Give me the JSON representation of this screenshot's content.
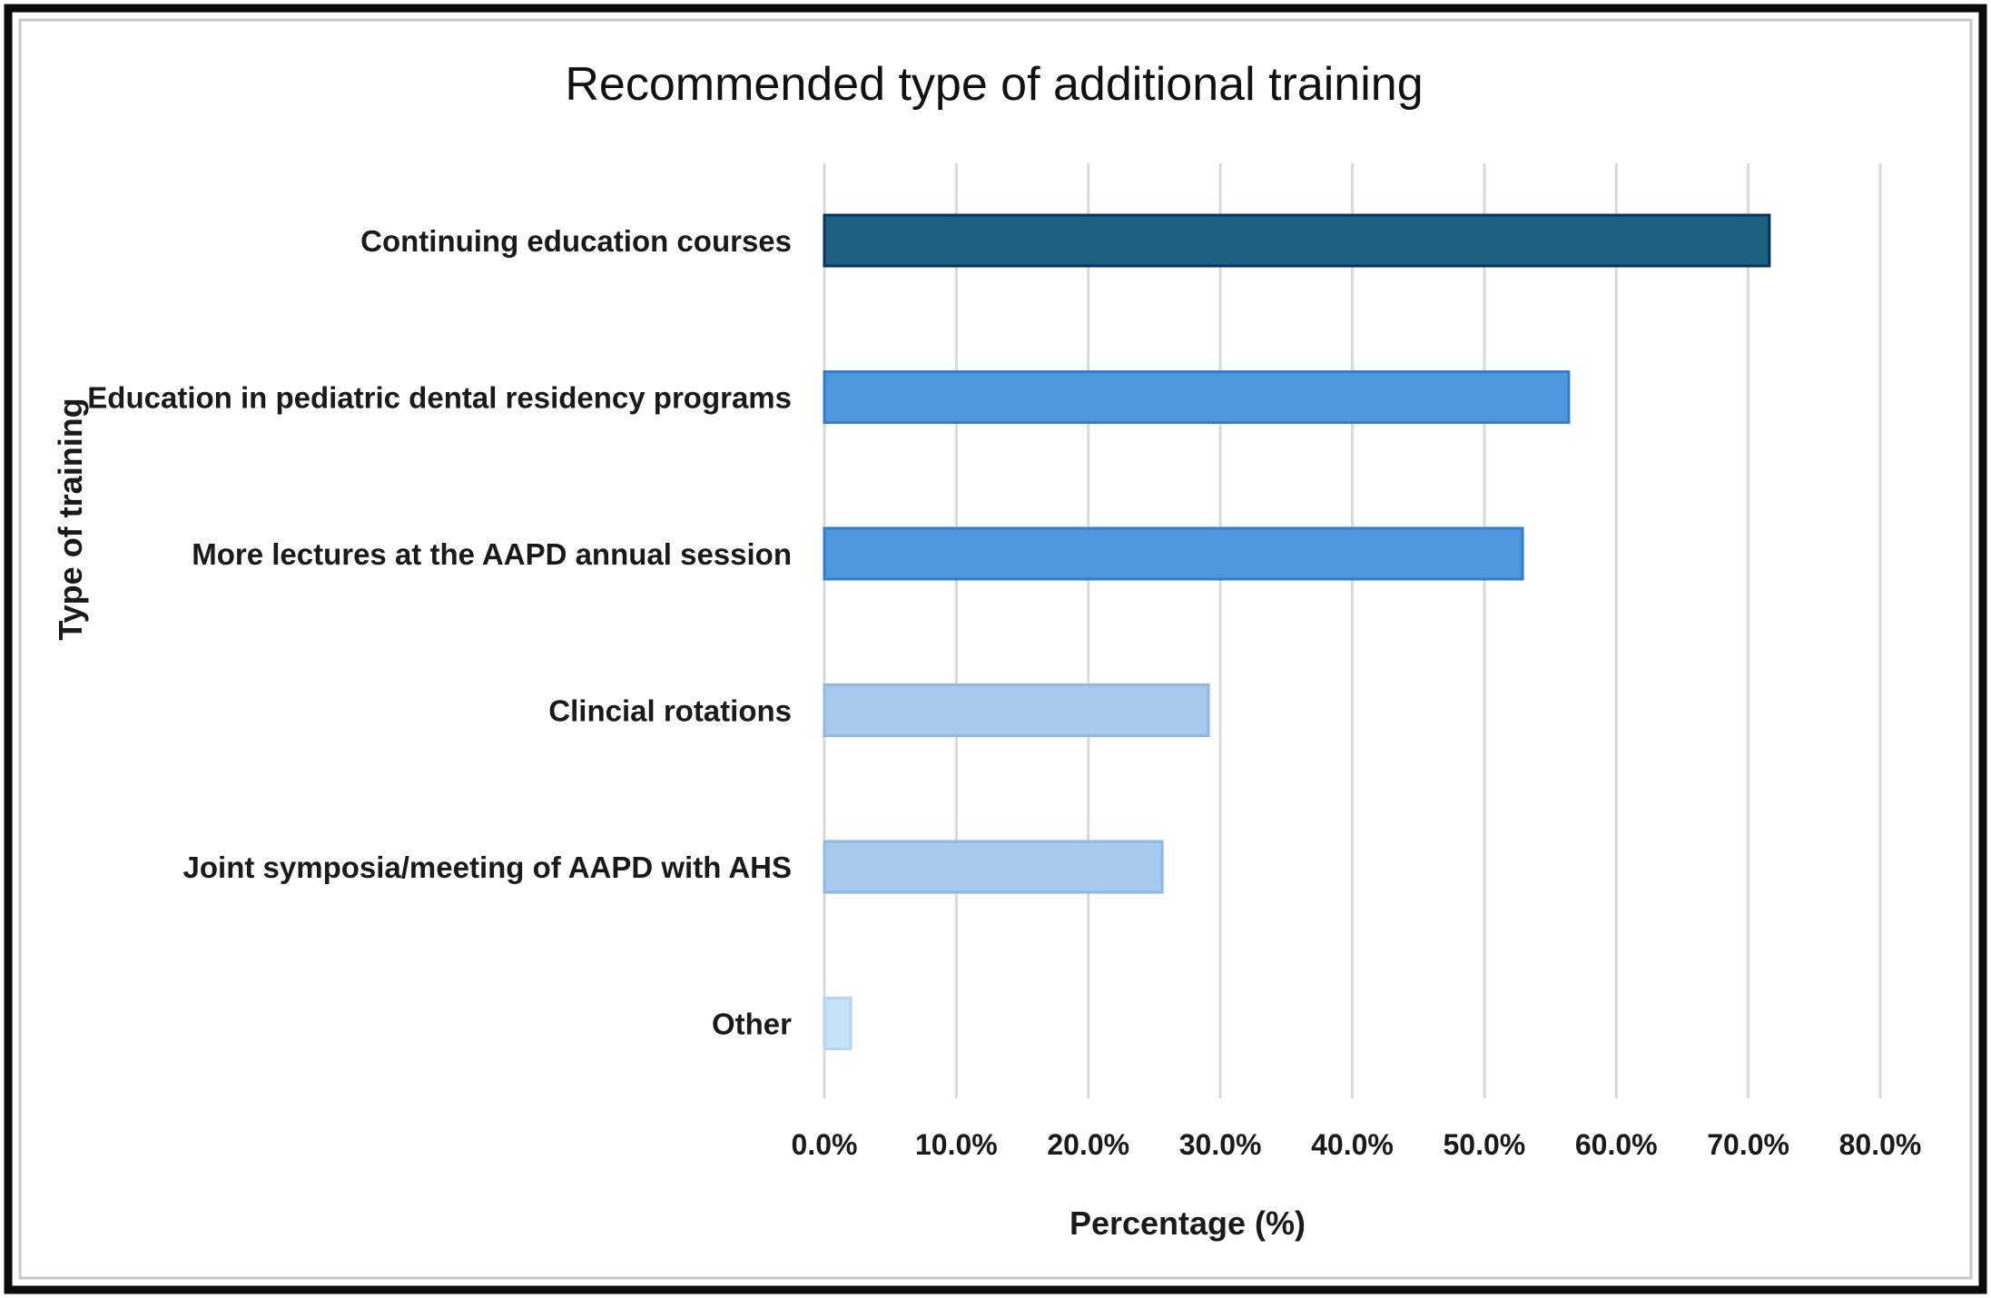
{
  "chart_data": {
    "type": "bar",
    "orientation": "horizontal",
    "title": "Recommended type of additional training",
    "xlabel": "Percentage (%)",
    "ylabel": "Type of training",
    "categories": [
      "Continuing education courses",
      "Education in pediatric dental residency programs",
      "More lectures at the AAPD annual session",
      "Clincial rotations",
      "Joint symposia/meeting of AAPD with AHS",
      "Other"
    ],
    "values": [
      71.6,
      56.4,
      52.9,
      29.1,
      25.6,
      2.0
    ],
    "xlim": [
      0,
      80
    ],
    "ticks": [
      0,
      10,
      20,
      30,
      40,
      50,
      60,
      70,
      80
    ],
    "tick_labels": [
      "0.0%",
      "10.0%",
      "20.0%",
      "30.0%",
      "40.0%",
      "50.0%",
      "60.0%",
      "70.0%",
      "80.0%"
    ],
    "grid": true,
    "legend": "none",
    "bar_colors": [
      "#1b6281",
      "#4f97dc",
      "#4f97dc",
      "#a7c9ee",
      "#a7c9ee",
      "#c6e2f7"
    ],
    "bar_edge_colors": [
      "#0e2f66",
      "#2f7fd0",
      "#2f7fd0",
      "#8fb8e6",
      "#8fb8e6",
      "#b4d6f0"
    ]
  }
}
